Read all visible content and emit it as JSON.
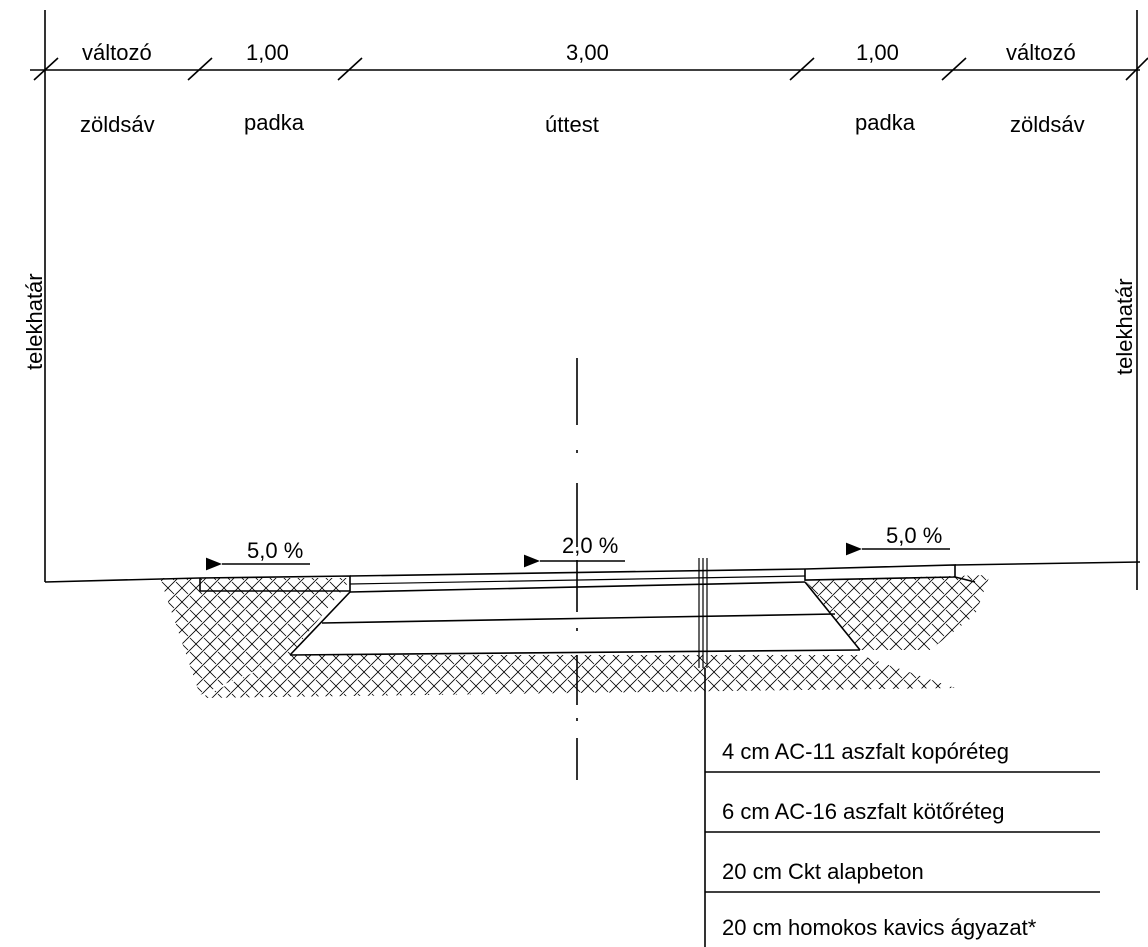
{
  "dimensions": {
    "left_green": "változó",
    "left_shoulder": "1,00",
    "carriageway": "3,00",
    "right_shoulder": "1,00",
    "right_green": "változó"
  },
  "zones": {
    "left_green": "zöldsáv",
    "left_shoulder": "padka",
    "carriageway": "úttest",
    "right_shoulder": "padka",
    "right_green": "zöldsáv"
  },
  "boundary": {
    "left": "telekhatár",
    "right": "telekhatár"
  },
  "slopes": {
    "left": "5,0 %",
    "center": "2,0 %",
    "right": "5,0 %"
  },
  "layers": [
    "4 cm AC-11 aszfalt kopóréteg",
    "6 cm AC-16 aszfalt kötőréteg",
    "20 cm Ckt alapbeton",
    "20 cm homokos kavics ágyazat*"
  ]
}
